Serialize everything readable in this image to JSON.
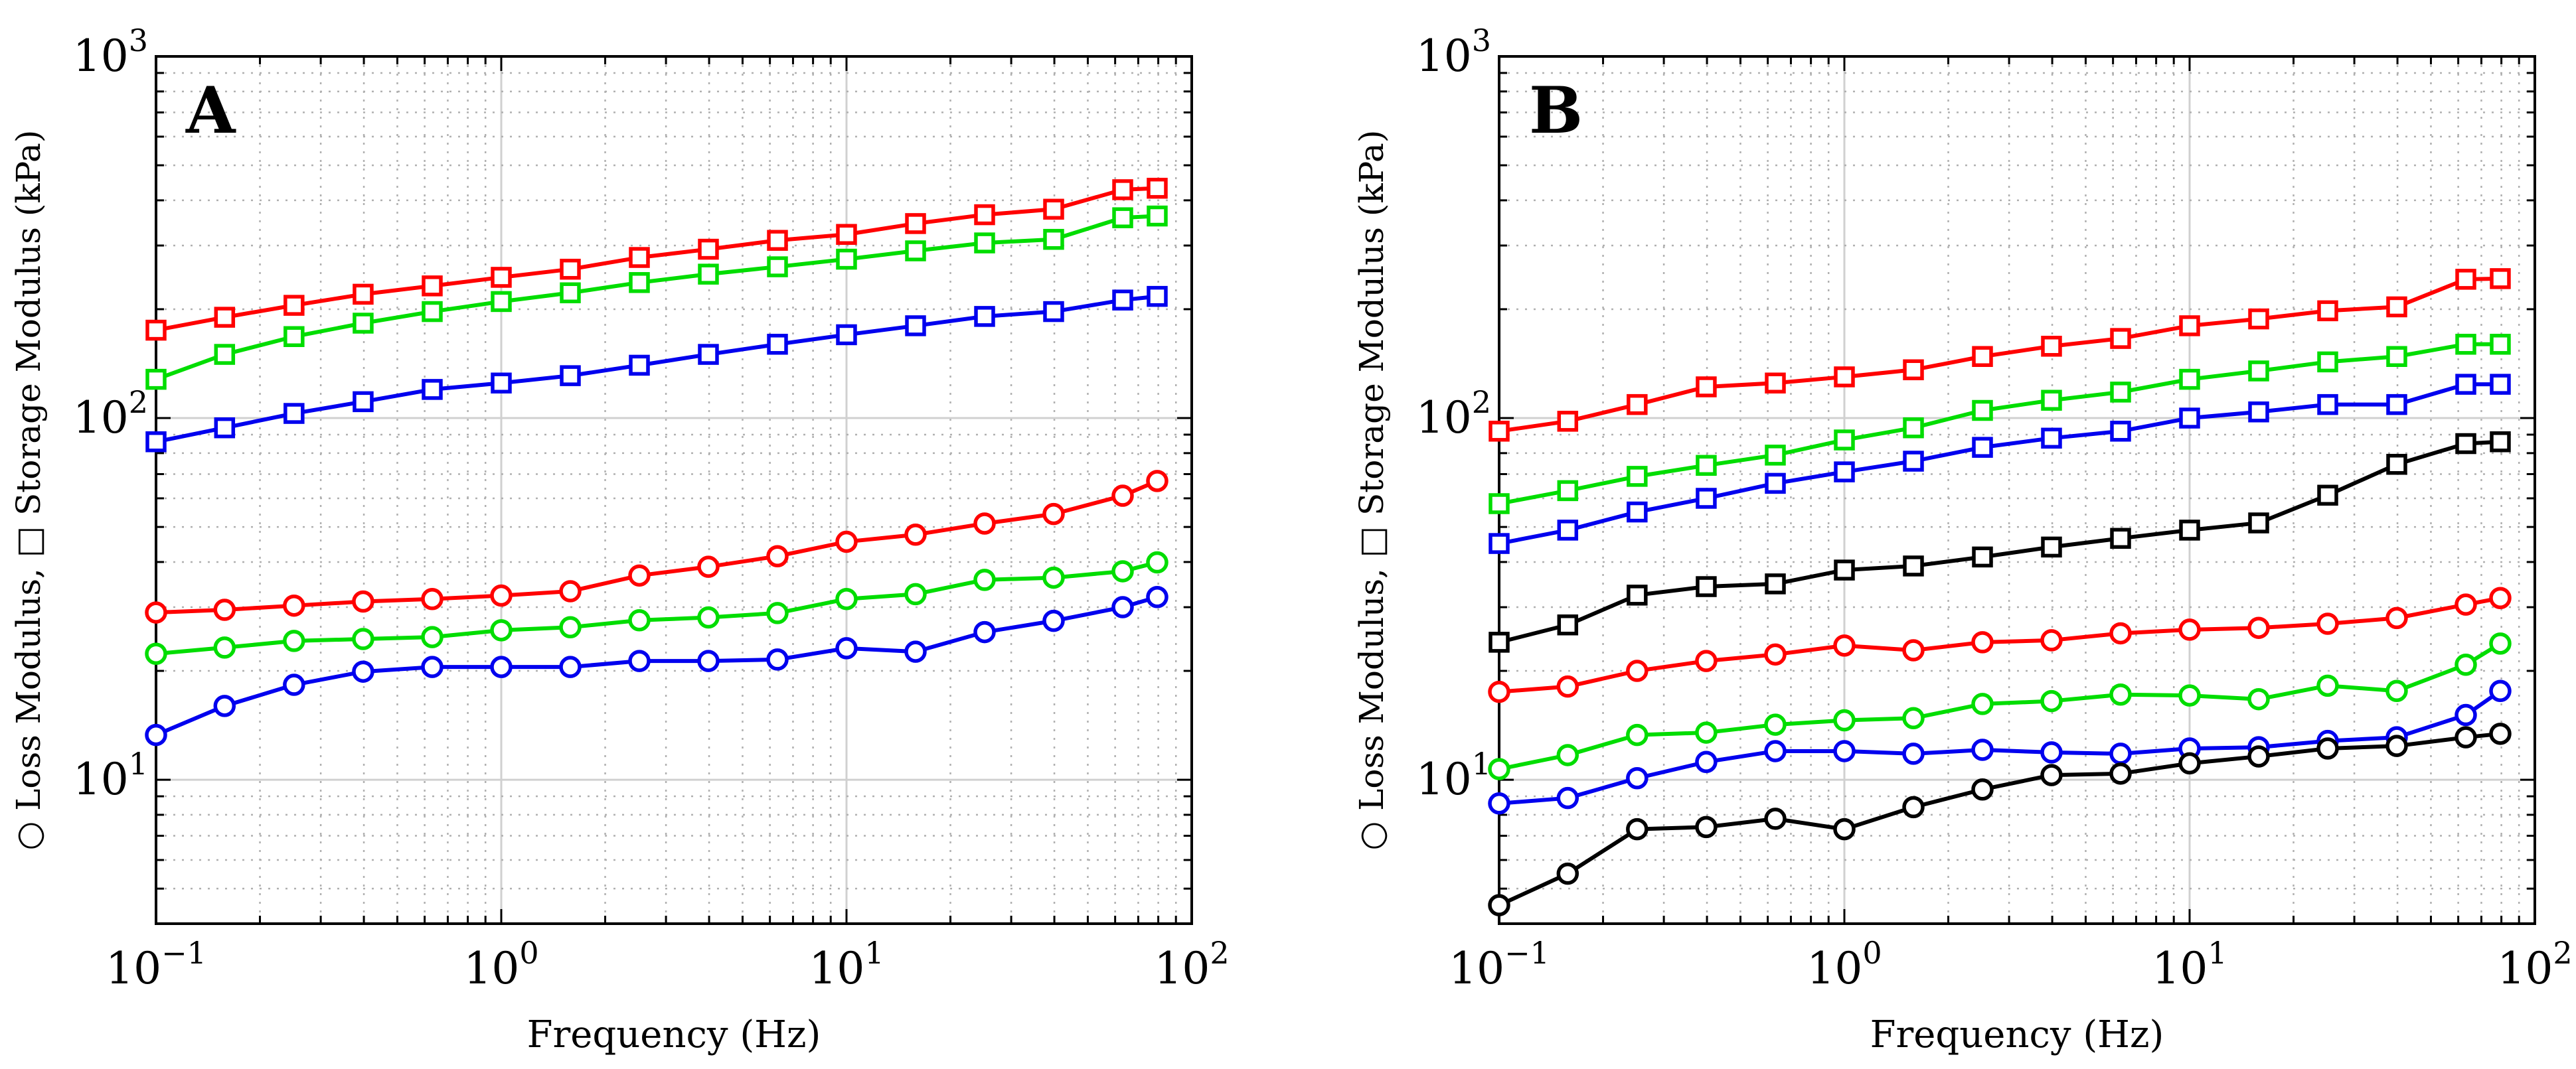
{
  "chart_data": [
    {
      "type": "line",
      "panel_label": "A",
      "xscale": "log",
      "yscale": "log",
      "xlim": [
        0.1,
        100
      ],
      "ylim": [
        4,
        1000
      ],
      "xlabel": "Frequency (Hz)",
      "ylabel": "Loss Modulus, Storage Modulus (kPa)",
      "ylabel_parts": {
        "loss_symbol": "○",
        "loss": "Loss Modulus,",
        "storage_symbol": "□",
        "storage": "Storage Modulus (kPa)"
      },
      "grid": true,
      "x_ticks": [
        {
          "base": "10",
          "exp": "−1"
        },
        {
          "base": "10",
          "exp": "0"
        },
        {
          "base": "10",
          "exp": "1"
        },
        {
          "base": "10",
          "exp": "2"
        }
      ],
      "y_ticks": [
        {
          "base": "10",
          "exp": "1"
        },
        {
          "base": "10",
          "exp": "2"
        },
        {
          "base": "10",
          "exp": "3"
        }
      ],
      "x": [
        0.1,
        0.158,
        0.251,
        0.398,
        0.631,
        1.0,
        1.585,
        2.512,
        3.981,
        6.31,
        10.0,
        15.85,
        25.12,
        39.81,
        63.1,
        79.43
      ],
      "series": [
        {
          "name": "Storage red",
          "color": "#ff0000",
          "marker": "square",
          "values": [
            175,
            190,
            205,
            220,
            232,
            245,
            258,
            278,
            293,
            310,
            322,
            345,
            365,
            378,
            428,
            432
          ]
        },
        {
          "name": "Storage green",
          "color": "#00dd00",
          "marker": "square",
          "values": [
            128,
            150,
            168,
            183,
            197,
            210,
            222,
            237,
            250,
            262,
            275,
            290,
            305,
            312,
            358,
            362
          ]
        },
        {
          "name": "Storage blue",
          "color": "#0000ee",
          "marker": "square",
          "values": [
            86,
            94,
            103,
            111,
            120,
            125,
            131,
            140,
            150,
            160,
            170,
            180,
            191,
            197,
            212,
            217
          ]
        },
        {
          "name": "Loss red",
          "color": "#ff0000",
          "marker": "circle",
          "values": [
            29,
            29.5,
            30.3,
            31.1,
            31.6,
            32.3,
            33.2,
            36.7,
            38.8,
            41.5,
            45.5,
            47.6,
            51.1,
            54.3,
            61,
            67
          ]
        },
        {
          "name": "Loss green",
          "color": "#00dd00",
          "marker": "circle",
          "values": [
            22.3,
            23.2,
            24.2,
            24.5,
            24.8,
            25.9,
            26.4,
            27.6,
            28.1,
            28.9,
            31.6,
            32.6,
            35.7,
            36.2,
            37.7,
            39.9
          ]
        },
        {
          "name": "Loss blue",
          "color": "#0000ee",
          "marker": "circle",
          "values": [
            13.3,
            16,
            18.3,
            19.9,
            20.5,
            20.5,
            20.5,
            21.3,
            21.3,
            21.5,
            23.1,
            22.6,
            25.6,
            27.5,
            30,
            32
          ]
        }
      ]
    },
    {
      "type": "line",
      "panel_label": "B",
      "xscale": "log",
      "yscale": "log",
      "xlim": [
        0.1,
        100
      ],
      "ylim": [
        4,
        1000
      ],
      "xlabel": "Frequency (Hz)",
      "ylabel": "Loss Modulus, Storage Modulus (kPa)",
      "ylabel_parts": {
        "loss_symbol": "○",
        "loss": "Loss Modulus,",
        "storage_symbol": "□",
        "storage": "Storage Modulus (kPa)"
      },
      "grid": true,
      "x_ticks": [
        {
          "base": "10",
          "exp": "−1"
        },
        {
          "base": "10",
          "exp": "0"
        },
        {
          "base": "10",
          "exp": "1"
        },
        {
          "base": "10",
          "exp": "2"
        }
      ],
      "y_ticks": [
        {
          "base": "10",
          "exp": "1"
        },
        {
          "base": "10",
          "exp": "2"
        },
        {
          "base": "10",
          "exp": "3"
        }
      ],
      "x": [
        0.1,
        0.158,
        0.251,
        0.398,
        0.631,
        1.0,
        1.585,
        2.512,
        3.981,
        6.31,
        10.0,
        15.85,
        25.12,
        39.81,
        63.1,
        79.43
      ],
      "series": [
        {
          "name": "Storage red",
          "color": "#ff0000",
          "marker": "square",
          "values": [
            92,
            98,
            109,
            122,
            125,
            130,
            136,
            148,
            158,
            166,
            180,
            188,
            198,
            203,
            242,
            243
          ]
        },
        {
          "name": "Storage green",
          "color": "#00dd00",
          "marker": "square",
          "values": [
            58,
            63,
            69,
            74,
            79,
            87,
            94,
            105,
            112,
            118,
            128,
            135,
            143,
            148,
            160,
            160
          ]
        },
        {
          "name": "Storage blue",
          "color": "#0000ee",
          "marker": "square",
          "values": [
            45,
            49,
            55,
            60,
            66,
            71,
            76,
            83,
            88,
            92,
            100,
            104,
            109,
            109,
            124,
            124
          ]
        },
        {
          "name": "Storage black",
          "color": "#000000",
          "marker": "square",
          "values": [
            24,
            26.8,
            32.4,
            34.2,
            34.8,
            38,
            39,
            41.3,
            44,
            46.5,
            49,
            51.3,
            61.2,
            74.5,
            85,
            86
          ]
        },
        {
          "name": "Loss red",
          "color": "#ff0000",
          "marker": "circle",
          "values": [
            17.5,
            18.1,
            20,
            21.3,
            22.2,
            23.5,
            22.8,
            24,
            24.3,
            25.4,
            26,
            26.3,
            27,
            28,
            30.5,
            31.8
          ]
        },
        {
          "name": "Loss green",
          "color": "#00dd00",
          "marker": "circle",
          "values": [
            10.7,
            11.7,
            13.3,
            13.5,
            14.2,
            14.6,
            14.8,
            16.2,
            16.5,
            17.2,
            17.1,
            16.7,
            18.2,
            17.6,
            20.8,
            23.8
          ]
        },
        {
          "name": "Loss blue",
          "color": "#0000ee",
          "marker": "circle",
          "values": [
            8.6,
            8.9,
            10.1,
            11.2,
            12,
            12,
            11.8,
            12.1,
            11.9,
            11.8,
            12.2,
            12.3,
            12.8,
            13.1,
            15.1,
            17.6
          ]
        },
        {
          "name": "Loss black",
          "color": "#000000",
          "marker": "circle",
          "values": [
            4.5,
            5.5,
            7.3,
            7.4,
            7.8,
            7.3,
            8.4,
            9.4,
            10.3,
            10.4,
            11.1,
            11.6,
            12.2,
            12.4,
            13.1,
            13.4
          ]
        }
      ]
    }
  ]
}
